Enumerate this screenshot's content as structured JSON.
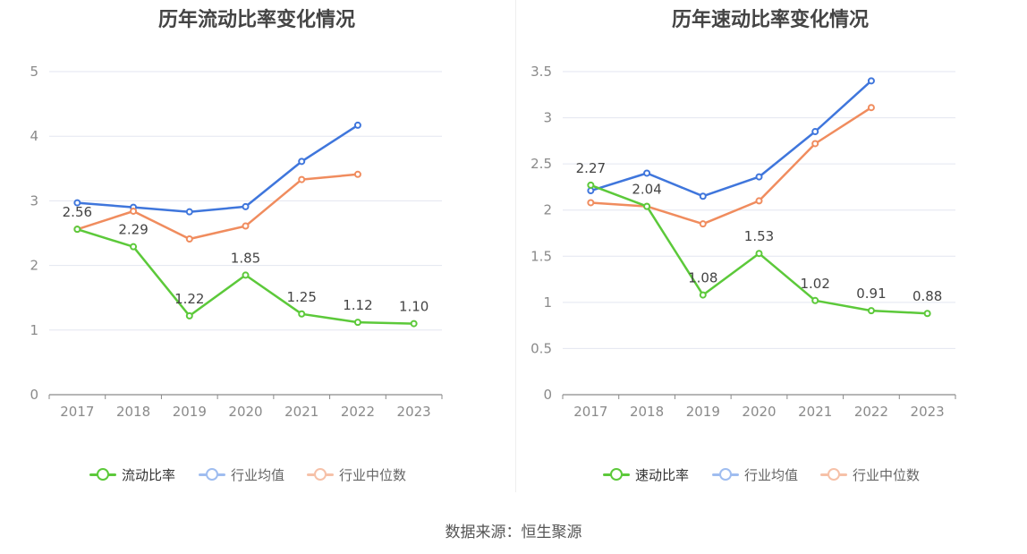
{
  "source_text": "数据来源：恒生聚源",
  "chart_data": [
    {
      "type": "line",
      "title": "历年流动比率变化情况",
      "categories": [
        "2017",
        "2018",
        "2019",
        "2020",
        "2021",
        "2022",
        "2023"
      ],
      "ylim": [
        0,
        5
      ],
      "yticks": [
        "0",
        "1",
        "2",
        "3",
        "4",
        "5"
      ],
      "grid": true,
      "legend_position": "bottom",
      "series": [
        {
          "name": "流动比率",
          "color": "#5cc93a",
          "values": [
            2.56,
            2.29,
            1.22,
            1.85,
            1.25,
            1.12,
            1.1
          ],
          "labels": [
            "2.56",
            "2.29",
            "1.22",
            "1.85",
            "1.25",
            "1.12",
            "1.10"
          ],
          "legend_active": true
        },
        {
          "name": "行业均值",
          "color": "#3f76dc",
          "values": [
            2.97,
            2.9,
            2.83,
            2.91,
            3.61,
            4.17,
            null
          ],
          "legend_active": false
        },
        {
          "name": "行业中位数",
          "color": "#f08c5e",
          "values": [
            2.56,
            2.84,
            2.41,
            2.61,
            3.33,
            3.41,
            null
          ],
          "legend_active": false
        }
      ]
    },
    {
      "type": "line",
      "title": "历年速动比率变化情况",
      "categories": [
        "2017",
        "2018",
        "2019",
        "2020",
        "2021",
        "2022",
        "2023"
      ],
      "ylim": [
        0,
        3.5
      ],
      "yticks": [
        "0",
        "0.5",
        "1",
        "1.5",
        "2",
        "2.5",
        "3",
        "3.5"
      ],
      "grid": true,
      "legend_position": "bottom",
      "series": [
        {
          "name": "速动比率",
          "color": "#5cc93a",
          "values": [
            2.27,
            2.04,
            1.08,
            1.53,
            1.02,
            0.91,
            0.88
          ],
          "labels": [
            "2.27",
            "2.04",
            "1.08",
            "1.53",
            "1.02",
            "0.91",
            "0.88"
          ],
          "legend_active": true
        },
        {
          "name": "行业均值",
          "color": "#3f76dc",
          "values": [
            2.21,
            2.4,
            2.15,
            2.36,
            2.85,
            3.4,
            null
          ],
          "legend_active": false
        },
        {
          "name": "行业中位数",
          "color": "#f08c5e",
          "values": [
            2.08,
            2.04,
            1.85,
            2.1,
            2.72,
            3.11,
            null
          ],
          "legend_active": false
        }
      ]
    }
  ]
}
